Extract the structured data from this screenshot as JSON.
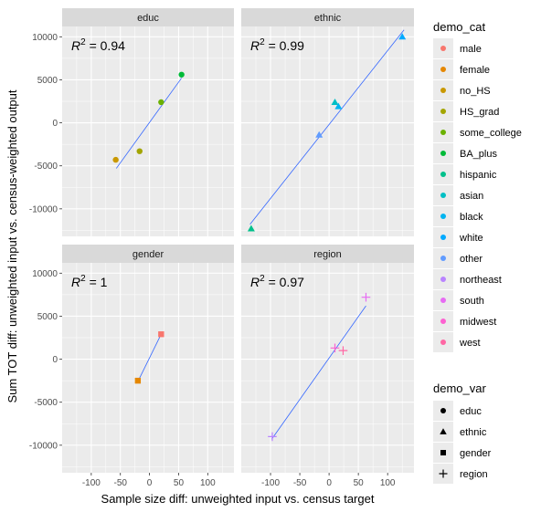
{
  "chart_data": {
    "type": "scatter",
    "xlabel": "Sample size diff: unweighted input vs. census target",
    "ylabel": "Sum TOT diff: unweighted input vs. census-weighted output",
    "xlim": [
      -150,
      145
    ],
    "ylim": [
      -13200,
      11200
    ],
    "xticks": [
      -100,
      -50,
      0,
      50,
      100
    ],
    "xtick_labels": [
      "-100",
      "-50",
      "0",
      "50",
      "100"
    ],
    "yticks": [
      -10000,
      -5000,
      0,
      5000,
      10000
    ],
    "ytick_labels": [
      "-10000",
      "-5000",
      "0",
      "5000",
      "10000"
    ],
    "grid": true,
    "legend_position": "right",
    "facets": [
      {
        "name": "educ",
        "r2_prefix": "R",
        "r2_exp": "2",
        "r2_value": " = 0.94",
        "fit_line": [
          [
            -57,
            -5300
          ],
          [
            55,
            5200
          ]
        ],
        "points": [
          {
            "cat": "no_HS",
            "x": -58,
            "y": -4300
          },
          {
            "cat": "HS_grad",
            "x": -17,
            "y": -3300
          },
          {
            "cat": "some_college",
            "x": 20,
            "y": 2400
          },
          {
            "cat": "BA_plus",
            "x": 55,
            "y": 5600
          }
        ]
      },
      {
        "name": "ethnic",
        "r2_prefix": "R",
        "r2_exp": "2",
        "r2_value": " = 0.99",
        "fit_line": [
          [
            -135,
            -11800
          ],
          [
            128,
            10800
          ]
        ],
        "points": [
          {
            "cat": "hispanic",
            "x": -133,
            "y": -12300
          },
          {
            "cat": "other",
            "x": -17,
            "y": -1400
          },
          {
            "cat": "asian",
            "x": 10,
            "y": 2400
          },
          {
            "cat": "black",
            "x": 16,
            "y": 1900
          },
          {
            "cat": "white",
            "x": 125,
            "y": 10000
          }
        ]
      },
      {
        "name": "gender",
        "r2_prefix": "R",
        "r2_exp": "2",
        "r2_value": " = 1",
        "fit_line": [
          [
            -20,
            -2600
          ],
          [
            20,
            2900
          ]
        ],
        "points": [
          {
            "cat": "female",
            "x": -20,
            "y": -2500
          },
          {
            "cat": "male",
            "x": 20,
            "y": 2900
          }
        ]
      },
      {
        "name": "region",
        "r2_prefix": "R",
        "r2_exp": "2",
        "r2_value": " = 0.97",
        "fit_line": [
          [
            -98,
            -9300
          ],
          [
            63,
            6200
          ]
        ],
        "points": [
          {
            "cat": "northeast",
            "x": -97,
            "y": -9000
          },
          {
            "cat": "south",
            "x": 63,
            "y": 7200
          },
          {
            "cat": "midwest",
            "x": 10,
            "y": 1300
          },
          {
            "cat": "west",
            "x": 24,
            "y": 1000
          }
        ]
      }
    ],
    "series_var_map": {
      "male": "gender",
      "female": "gender",
      "no_HS": "educ",
      "HS_grad": "educ",
      "some_college": "educ",
      "BA_plus": "educ",
      "hispanic": "ethnic",
      "asian": "ethnic",
      "black": "ethnic",
      "white": "ethnic",
      "other": "ethnic",
      "northeast": "region",
      "south": "region",
      "midwest": "region",
      "west": "region"
    }
  },
  "legend_cat": {
    "title": "demo_cat",
    "items": [
      {
        "label": "male",
        "color": "#F8766D"
      },
      {
        "label": "female",
        "color": "#E58700"
      },
      {
        "label": "no_HS",
        "color": "#C99800"
      },
      {
        "label": "HS_grad",
        "color": "#A3A500"
      },
      {
        "label": "some_college",
        "color": "#6BB100"
      },
      {
        "label": "BA_plus",
        "color": "#00BA38"
      },
      {
        "label": "hispanic",
        "color": "#00C08B"
      },
      {
        "label": "asian",
        "color": "#00BFC4"
      },
      {
        "label": "black",
        "color": "#00B4F0"
      },
      {
        "label": "white",
        "color": "#00A9FF"
      },
      {
        "label": "other",
        "color": "#619CFF"
      },
      {
        "label": "northeast",
        "color": "#B983FF"
      },
      {
        "label": "south",
        "color": "#E76BF3"
      },
      {
        "label": "midwest",
        "color": "#FD61D1"
      },
      {
        "label": "west",
        "color": "#FF67A4"
      }
    ]
  },
  "legend_var": {
    "title": "demo_var",
    "items": [
      {
        "label": "educ",
        "shape": "circle"
      },
      {
        "label": "ethnic",
        "shape": "triangle"
      },
      {
        "label": "gender",
        "shape": "square"
      },
      {
        "label": "region",
        "shape": "plus"
      }
    ]
  },
  "colors": {
    "panel_bg": "#EBEBEB",
    "strip_bg": "#D9D9D9",
    "grid_major": "#FFFFFF",
    "fit_line": "#3366FF",
    "legend_key_bg": "#EBEBEB"
  }
}
